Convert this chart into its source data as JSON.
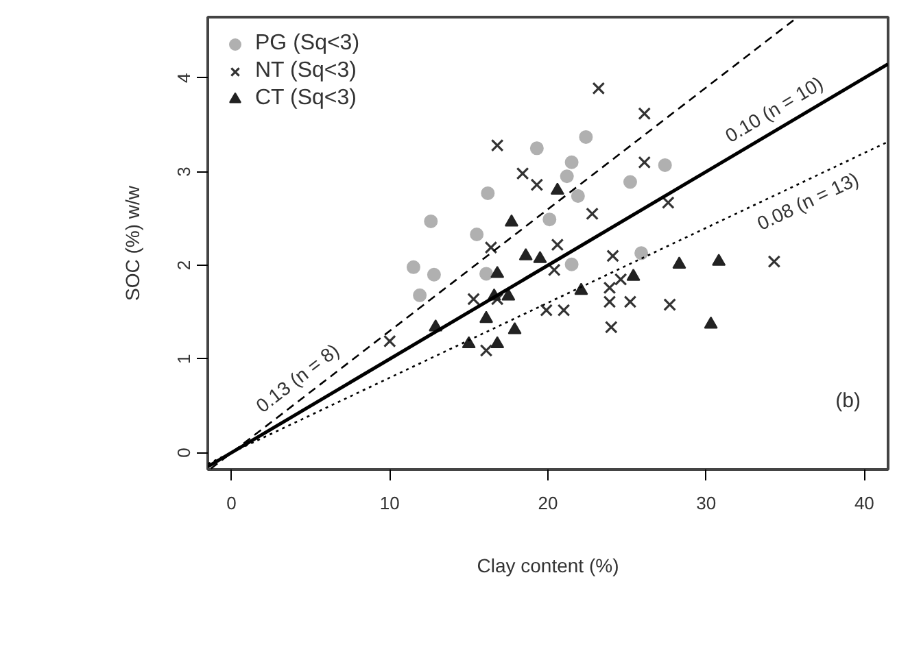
{
  "chart_data": {
    "type": "scatter",
    "xlabel": "Clay content (%)",
    "ylabel": "SOC (%) w/w",
    "xlim": [
      -1.5,
      41.5
    ],
    "ylim": [
      -0.18,
      4.65
    ],
    "xticks": [
      0,
      10,
      20,
      30,
      40
    ],
    "yticks": [
      0,
      1,
      2,
      3,
      4
    ],
    "grid": false,
    "legend": "top left",
    "series": [
      {
        "name": "PG (Sq<3)",
        "color": "#b0b0b0",
        "marker": "circle",
        "x": [
          11.5,
          11.9,
          12.8,
          12.6,
          15.5,
          16.2,
          19.3,
          20.1,
          21.2,
          21.5,
          22.4,
          21.5,
          21.9,
          25.2,
          27.4,
          25.9,
          16.1
        ],
        "values": [
          1.98,
          1.68,
          1.9,
          2.47,
          2.33,
          2.77,
          3.25,
          2.49,
          2.95,
          3.1,
          3.37,
          2.01,
          2.74,
          2.89,
          3.07,
          2.13,
          1.91
        ]
      },
      {
        "name": "NT (Sq<3)",
        "color": "#333333",
        "marker": "cross",
        "x": [
          23.2,
          16.8,
          26.1,
          26.1,
          18.4,
          19.3,
          22.8,
          27.6,
          16.4,
          20.6,
          24.1,
          20.4,
          15.3,
          16.8,
          19.9,
          21.0,
          23.9,
          23.9,
          25.2,
          27.7,
          24.0,
          34.3,
          10.0,
          16.1,
          24.6
        ],
        "values": [
          3.89,
          3.28,
          3.62,
          3.1,
          2.98,
          2.86,
          2.55,
          2.67,
          2.19,
          2.22,
          2.1,
          1.95,
          1.64,
          1.64,
          1.52,
          1.52,
          1.76,
          1.61,
          1.61,
          1.58,
          1.34,
          2.04,
          1.19,
          1.09,
          1.85
        ]
      },
      {
        "name": "CT (Sq<3)",
        "color": "#222222",
        "marker": "triangle",
        "x": [
          17.7,
          18.6,
          19.5,
          16.8,
          20.6,
          16.6,
          17.5,
          16.1,
          12.9,
          17.9,
          15.0,
          16.8,
          22.1,
          25.4,
          28.3,
          30.8,
          30.3
        ],
        "values": [
          2.46,
          2.1,
          2.07,
          1.91,
          2.8,
          1.67,
          1.67,
          1.43,
          1.34,
          1.31,
          1.16,
          1.16,
          1.73,
          1.88,
          2.01,
          2.04,
          1.37
        ]
      },
      {
        "type": "line",
        "color": "#000000",
        "line_style": "solid",
        "x": [
          -1.5,
          41.5
        ],
        "values": [
          -0.15,
          4.15
        ]
      },
      {
        "type": "line",
        "color": "#000000",
        "line_style": "dashed",
        "x": [
          -1.3,
          35.7
        ],
        "values": [
          -0.17,
          4.64
        ]
      },
      {
        "type": "line",
        "color": "#000000",
        "line_style": "dotted",
        "x": [
          -1.5,
          41.5
        ],
        "values": [
          -0.12,
          3.32
        ]
      }
    ],
    "annotations": [
      {
        "text": "0.13 (n = 8)",
        "x": 4.9,
        "y": 0.636
      },
      {
        "text": "0.10 (n = 10)",
        "x": 34.9,
        "y": 3.49
      },
      {
        "text": "0.08 (n = 13)",
        "x": 35.9,
        "y": 2.872
      },
      "(b)"
    ]
  }
}
